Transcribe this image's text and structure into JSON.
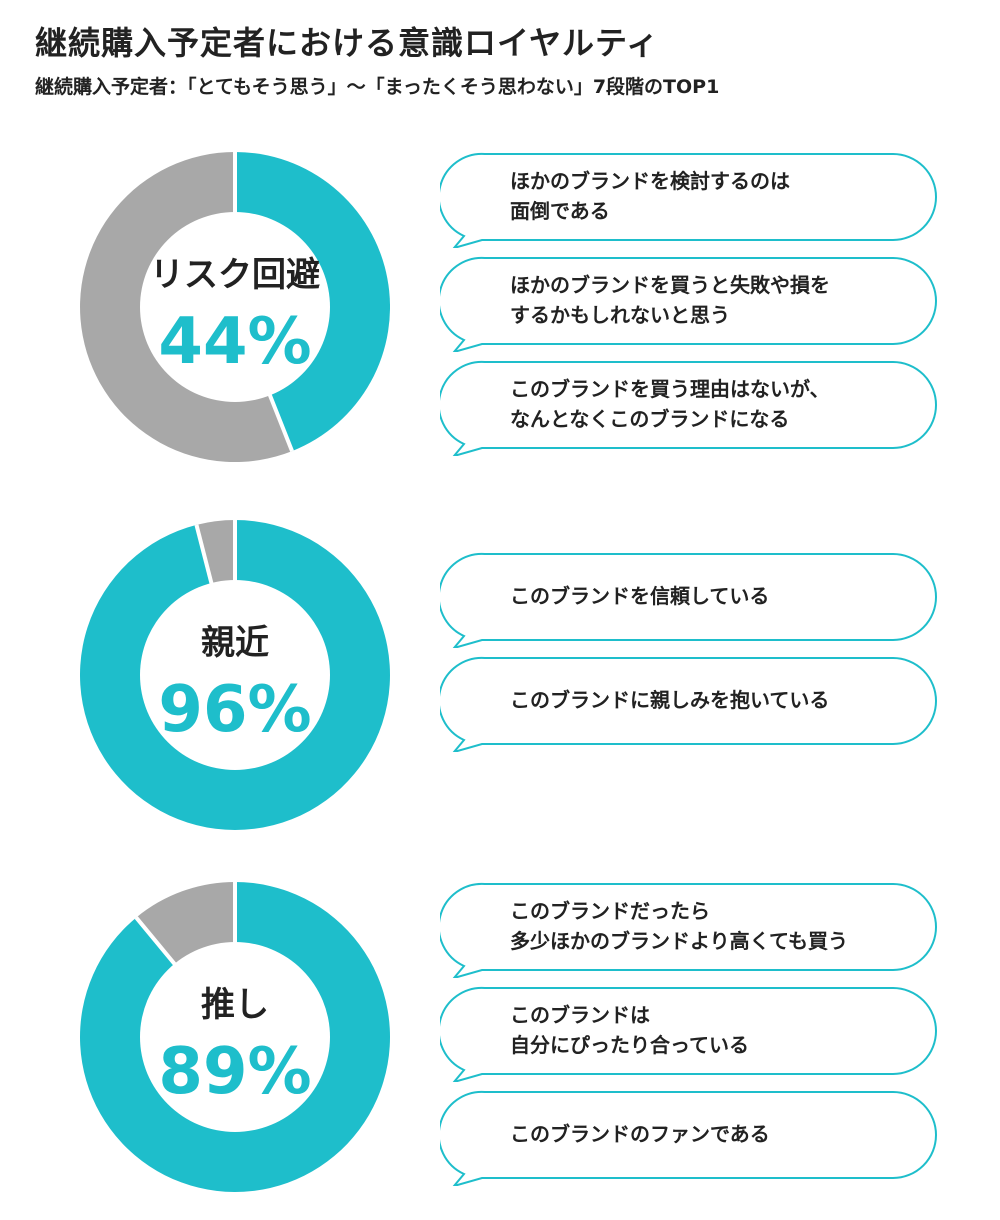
{
  "title": "継続購入予定者における意識ロイヤルティ",
  "subtitle": "継続購入予定者：「とてもそう思う」〜「まったくそう思わない」7段階のTOP1",
  "colors": {
    "accent": "#1ebecb",
    "rest": "#a8a8a8",
    "bubble_border": "#1ebecb"
  },
  "chart_data": [
    {
      "type": "pie",
      "label": "リスク回避",
      "percent_label": "44%",
      "value": 44,
      "total": 100,
      "reasons": [
        [
          "ほかのブランドを検討するのは",
          "面倒である"
        ],
        [
          "ほかのブランドを買うと失敗や損を",
          "するかもしれないと思う"
        ],
        [
          "このブランドを買う理由はないが、",
          "なんとなくこのブランドになる"
        ]
      ]
    },
    {
      "type": "pie",
      "label": "親近",
      "percent_label": "96%",
      "value": 96,
      "total": 100,
      "reasons": [
        [
          "このブランドを信頼している"
        ],
        [
          "このブランドに親しみを抱いている"
        ]
      ]
    },
    {
      "type": "pie",
      "label": "推し",
      "percent_label": "89%",
      "value": 89,
      "total": 100,
      "reasons": [
        [
          "このブランドだったら",
          "多少ほかのブランドより高くても買う"
        ],
        [
          "このブランドは",
          "自分にぴったり合っている"
        ],
        [
          "このブランドのファンである"
        ]
      ]
    }
  ]
}
